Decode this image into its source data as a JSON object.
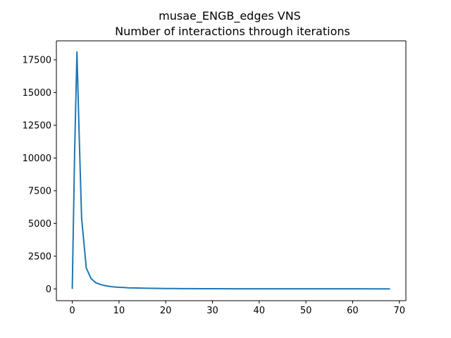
{
  "chart_data": {
    "type": "line",
    "title": "musae_ENGB_edges VNS",
    "subtitle": "Number of interactions through iterations",
    "xlabel": "",
    "ylabel": "",
    "xlim": [
      -3.4,
      71.4
    ],
    "ylim": [
      -900,
      18950
    ],
    "xticks": [
      0,
      10,
      20,
      30,
      40,
      50,
      60,
      70
    ],
    "yticks": [
      0,
      2500,
      5000,
      7500,
      10000,
      12500,
      15000,
      17500
    ],
    "grid": false,
    "legend": "none",
    "series": [
      {
        "color": "#1f77b4",
        "x": [
          0,
          0.5,
          1,
          1.5,
          2,
          3,
          4,
          5,
          6,
          7,
          8,
          9,
          10,
          11,
          12,
          14,
          16,
          18,
          20,
          22,
          25,
          28,
          30,
          35,
          40,
          45,
          50,
          55,
          60,
          65,
          68
        ],
        "y": [
          0,
          10300,
          18100,
          11500,
          5400,
          1600,
          800,
          480,
          340,
          250,
          190,
          150,
          120,
          110,
          80,
          65,
          50,
          40,
          30,
          25,
          20,
          15,
          12,
          10,
          8,
          7,
          6,
          5,
          5,
          4,
          4
        ]
      }
    ]
  }
}
